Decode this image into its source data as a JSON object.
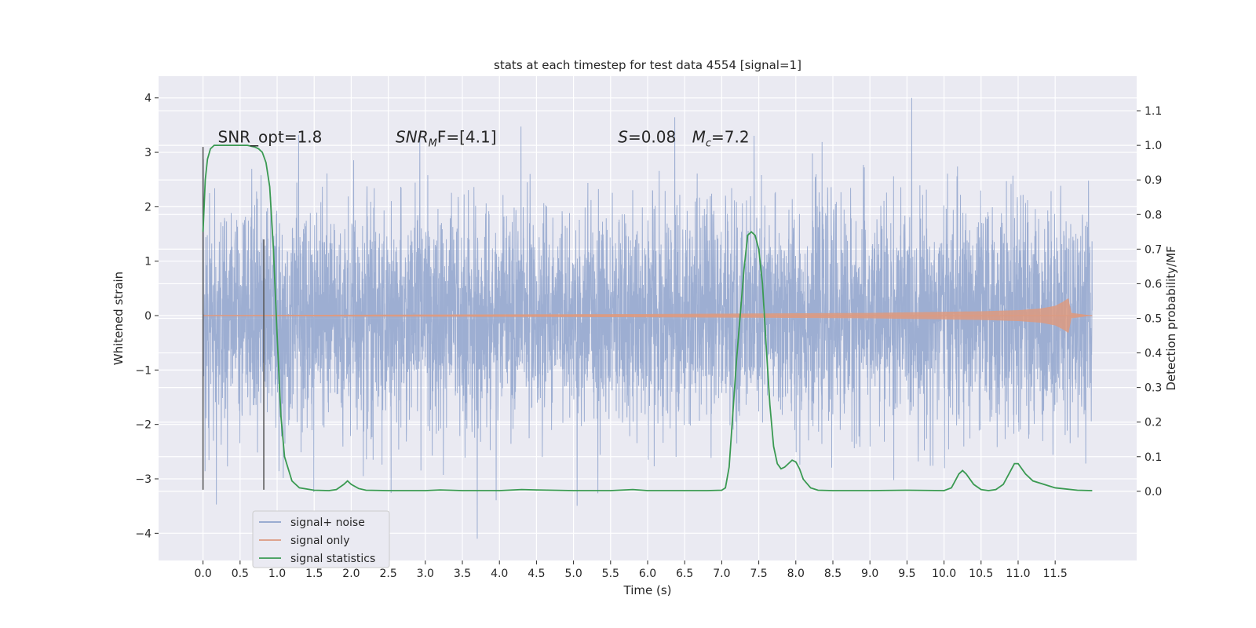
{
  "chart_data": {
    "type": "line",
    "title": "stats at each timestep for test data 4554 [signal=1]",
    "xlabel": "Time (s)",
    "ylabel": "Whitened strain",
    "y2label": "Detection probability/MF",
    "xlim": [
      -0.6,
      12.6
    ],
    "ylim": [
      -4.5,
      4.4
    ],
    "y2lim": [
      -0.2,
      1.2
    ],
    "xticks": [
      0.0,
      0.5,
      1.0,
      1.5,
      2.0,
      2.5,
      3.0,
      3.5,
      4.0,
      4.5,
      5.0,
      5.5,
      6.0,
      6.5,
      7.0,
      7.5,
      8.0,
      8.5,
      9.0,
      9.5,
      10.0,
      10.5,
      11.0,
      11.5
    ],
    "xtick_labels": [
      "0.0",
      "0.5",
      "1.0",
      "1.5",
      "2.0",
      "2.5",
      "3.0",
      "3.5",
      "4.0",
      "4.5",
      "5.0",
      "5.5",
      "6.0",
      "6.5",
      "7.0",
      "7.5",
      "8.0",
      "8.5",
      "9.0",
      "9.5",
      "10.0",
      "10.5",
      "11.0",
      "11.5"
    ],
    "yticks": [
      -4,
      -3,
      -2,
      -1,
      0,
      1,
      2,
      3,
      4
    ],
    "ytick_labels": [
      "−4",
      "−3",
      "−2",
      "−1",
      "0",
      "1",
      "2",
      "3",
      "4"
    ],
    "y2ticks": [
      0.0,
      0.1,
      0.2,
      0.3,
      0.4,
      0.5,
      0.6,
      0.7,
      0.8,
      0.9,
      1.0,
      1.1
    ],
    "y2tick_labels": [
      "0.0",
      "0.1",
      "0.2",
      "0.3",
      "0.4",
      "0.5",
      "0.6",
      "0.7",
      "0.8",
      "0.9",
      "1.0",
      "1.1"
    ],
    "grid": true,
    "legend_position": "lower-left",
    "legend": [
      "signal+ noise",
      "signal only",
      "signal statistics"
    ],
    "series": [
      {
        "name": "signal+ noise",
        "axis": "left",
        "color": "#8fa3cc",
        "x_range": [
          0.0,
          12.0
        ],
        "amplitude_sd": 1.0,
        "description_range": [
          -4.1,
          4.0
        ]
      },
      {
        "name": "signal only",
        "axis": "left",
        "color": "#dd9a80",
        "x": [
          0.0,
          6.0,
          9.0,
          10.5,
          11.0,
          11.3,
          11.5,
          11.6,
          11.68,
          11.72,
          12.0
        ],
        "envelope": [
          0.01,
          0.03,
          0.05,
          0.08,
          0.1,
          0.13,
          0.18,
          0.25,
          0.32,
          0.05,
          0.0
        ]
      },
      {
        "name": "signal statistics",
        "axis": "right",
        "color": "#3a9a52",
        "x": [
          0.0,
          0.03,
          0.06,
          0.1,
          0.15,
          0.2,
          0.3,
          0.4,
          0.5,
          0.6,
          0.7,
          0.75,
          0.8,
          0.85,
          0.9,
          0.95,
          1.0,
          1.05,
          1.1,
          1.2,
          1.3,
          1.5,
          1.7,
          1.8,
          1.9,
          1.95,
          2.0,
          2.1,
          2.2,
          2.5,
          3.0,
          3.2,
          3.5,
          4.0,
          4.3,
          4.5,
          5.0,
          5.5,
          5.8,
          6.0,
          6.5,
          6.8,
          7.0,
          7.05,
          7.1,
          7.2,
          7.3,
          7.35,
          7.4,
          7.45,
          7.5,
          7.55,
          7.6,
          7.65,
          7.7,
          7.75,
          7.8,
          7.85,
          7.9,
          7.95,
          8.0,
          8.05,
          8.1,
          8.2,
          8.3,
          8.5,
          9.0,
          9.5,
          10.0,
          10.1,
          10.15,
          10.2,
          10.25,
          10.3,
          10.4,
          10.5,
          10.6,
          10.7,
          10.8,
          10.9,
          10.95,
          11.0,
          11.1,
          11.2,
          11.5,
          11.8,
          12.0
        ],
        "y": [
          0.75,
          0.9,
          0.96,
          0.99,
          1.0,
          1.0,
          1.0,
          1.0,
          1.0,
          1.0,
          0.995,
          0.99,
          0.98,
          0.95,
          0.88,
          0.7,
          0.45,
          0.22,
          0.1,
          0.03,
          0.01,
          0.003,
          0.002,
          0.005,
          0.02,
          0.03,
          0.02,
          0.008,
          0.003,
          0.002,
          0.002,
          0.004,
          0.002,
          0.002,
          0.005,
          0.004,
          0.002,
          0.002,
          0.005,
          0.002,
          0.002,
          0.002,
          0.003,
          0.01,
          0.07,
          0.38,
          0.64,
          0.74,
          0.75,
          0.74,
          0.7,
          0.6,
          0.42,
          0.25,
          0.13,
          0.08,
          0.065,
          0.07,
          0.08,
          0.09,
          0.085,
          0.065,
          0.035,
          0.01,
          0.003,
          0.002,
          0.002,
          0.003,
          0.002,
          0.01,
          0.03,
          0.05,
          0.06,
          0.05,
          0.02,
          0.005,
          0.002,
          0.005,
          0.02,
          0.06,
          0.08,
          0.08,
          0.05,
          0.03,
          0.01,
          0.003,
          0.002
        ]
      }
    ],
    "annotations": [
      {
        "text": "SNR_opt=1.8",
        "x": 0.2,
        "y": 3.18
      },
      {
        "text_main": "SNR",
        "text_sub": "M",
        "text_rest": "F=[4.1]",
        "x": 2.6,
        "y": 3.18
      },
      {
        "text_main": "S",
        "text_rest": "=0.08",
        "x": 5.6,
        "y": 3.18
      },
      {
        "text_main": "M",
        "text_sub": "c",
        "text_rest": "=7.2",
        "x": 6.6,
        "y": 3.18
      }
    ],
    "vlines": [
      {
        "x": 0.0,
        "ymin": -3.2,
        "ymax": 3.1
      },
      {
        "x": 0.82,
        "ymin": -3.2,
        "ymax": 1.4
      }
    ]
  }
}
